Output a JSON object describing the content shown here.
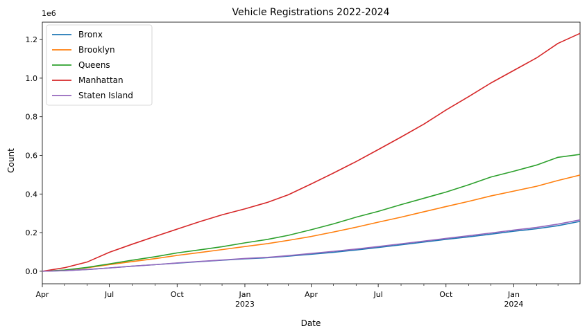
{
  "chart_data": {
    "type": "line",
    "title": "Vehicle Registrations 2022-2024",
    "xlabel": "Date",
    "ylabel": "Count",
    "y_offset_label": "1e6",
    "x_range": [
      "2022-04-01",
      "2024-03-31"
    ],
    "ylim": [
      -0.065,
      1.29
    ],
    "y_ticks": [
      0.0,
      0.2,
      0.4,
      0.6,
      0.8,
      1.0,
      1.2
    ],
    "y_tick_labels": [
      "0.0",
      "0.2",
      "0.4",
      "0.6",
      "0.8",
      "1.0",
      "1.2"
    ],
    "x_major_ticks": [
      {
        "date": "2022-04-01",
        "label": "Apr",
        "year": ""
      },
      {
        "date": "2022-07-01",
        "label": "Jul",
        "year": ""
      },
      {
        "date": "2022-10-01",
        "label": "Oct",
        "year": ""
      },
      {
        "date": "2023-01-01",
        "label": "Jan",
        "year": "2023"
      },
      {
        "date": "2023-04-01",
        "label": "Apr",
        "year": ""
      },
      {
        "date": "2023-07-01",
        "label": "Jul",
        "year": ""
      },
      {
        "date": "2023-10-01",
        "label": "Oct",
        "year": ""
      },
      {
        "date": "2024-01-01",
        "label": "Jan",
        "year": "2024"
      }
    ],
    "x_minor_ticks": [
      "2022-05-01",
      "2022-06-01",
      "2022-08-01",
      "2022-09-01",
      "2022-11-01",
      "2022-12-01",
      "2023-02-01",
      "2023-03-01",
      "2023-05-01",
      "2023-06-01",
      "2023-08-01",
      "2023-09-01",
      "2023-11-01",
      "2023-12-01",
      "2024-02-01",
      "2024-03-01"
    ],
    "grid": false,
    "legend_position": "top-left",
    "x": [
      "2022-04-01",
      "2022-05-01",
      "2022-06-01",
      "2022-07-01",
      "2022-08-01",
      "2022-09-01",
      "2022-10-01",
      "2022-11-01",
      "2022-12-01",
      "2023-01-01",
      "2023-02-01",
      "2023-03-01",
      "2023-04-01",
      "2023-05-01",
      "2023-06-01",
      "2023-07-01",
      "2023-08-01",
      "2023-09-01",
      "2023-10-01",
      "2023-11-01",
      "2023-12-01",
      "2024-01-01",
      "2024-02-01",
      "2024-03-01",
      "2024-03-31"
    ],
    "series": [
      {
        "name": "Bronx",
        "color": "#1f77b4",
        "values": [
          0.0,
          0.003,
          0.009,
          0.017,
          0.026,
          0.034,
          0.042,
          0.05,
          0.057,
          0.064,
          0.07,
          0.078,
          0.088,
          0.098,
          0.11,
          0.123,
          0.137,
          0.151,
          0.165,
          0.178,
          0.192,
          0.207,
          0.22,
          0.236,
          0.258
        ]
      },
      {
        "name": "Brooklyn",
        "color": "#ff7f0e",
        "values": [
          0.0,
          0.005,
          0.018,
          0.034,
          0.05,
          0.065,
          0.082,
          0.097,
          0.112,
          0.128,
          0.143,
          0.16,
          0.18,
          0.203,
          0.228,
          0.254,
          0.28,
          0.308,
          0.335,
          0.362,
          0.39,
          0.415,
          0.44,
          0.47,
          0.498
        ]
      },
      {
        "name": "Queens",
        "color": "#2ca02c",
        "values": [
          0.0,
          0.006,
          0.02,
          0.038,
          0.057,
          0.075,
          0.095,
          0.111,
          0.127,
          0.147,
          0.165,
          0.186,
          0.215,
          0.245,
          0.28,
          0.31,
          0.345,
          0.378,
          0.41,
          0.448,
          0.488,
          0.518,
          0.55,
          0.59,
          0.605
        ]
      },
      {
        "name": "Manhattan",
        "color": "#d62728",
        "values": [
          0.0,
          0.018,
          0.048,
          0.098,
          0.14,
          0.18,
          0.218,
          0.257,
          0.292,
          0.323,
          0.357,
          0.396,
          0.452,
          0.508,
          0.568,
          0.63,
          0.695,
          0.762,
          0.835,
          0.905,
          0.975,
          1.04,
          1.105,
          1.18,
          1.232
        ]
      },
      {
        "name": "Staten Island",
        "color": "#9467bd",
        "values": [
          0.0,
          0.003,
          0.009,
          0.017,
          0.026,
          0.034,
          0.043,
          0.051,
          0.058,
          0.066,
          0.072,
          0.081,
          0.092,
          0.103,
          0.115,
          0.128,
          0.142,
          0.156,
          0.17,
          0.184,
          0.198,
          0.213,
          0.227,
          0.244,
          0.266
        ]
      }
    ]
  }
}
